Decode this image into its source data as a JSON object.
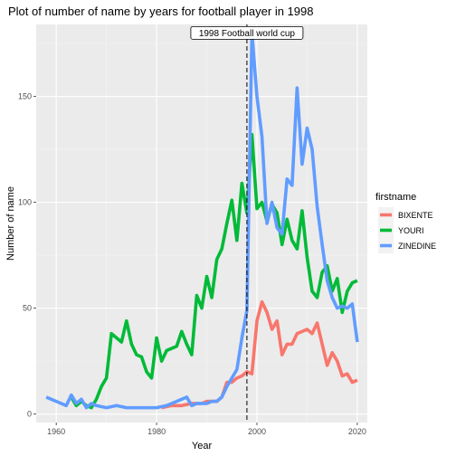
{
  "chart_data": {
    "type": "line",
    "title": "Plot of number of name by years for football player in 1998",
    "xlabel": "Year",
    "ylabel": "Number of name",
    "xlim": [
      1956,
      2022
    ],
    "ylim": [
      -4,
      184
    ],
    "x_ticks": [
      1960,
      1980,
      2000,
      2020
    ],
    "y_ticks": [
      0,
      50,
      100,
      150
    ],
    "x_tick_labels": [
      "1960",
      "1980",
      "2000",
      "2020"
    ],
    "y_tick_labels": [
      "0",
      "50",
      "100",
      "150"
    ],
    "grid": true,
    "legend": {
      "title": "firstname",
      "position": "right"
    },
    "vline": {
      "x": 1998,
      "style": "dashed"
    },
    "annotation": {
      "text": "1998 Football world cup",
      "x": 1998,
      "y": 180
    },
    "series": [
      {
        "name": "BIXENTE",
        "color": "#F8766D",
        "points": [
          [
            1981,
            3
          ],
          [
            1983,
            4
          ],
          [
            1985,
            4
          ],
          [
            1987,
            5
          ],
          [
            1989,
            5
          ],
          [
            1990,
            6
          ],
          [
            1991,
            6
          ],
          [
            1992,
            6
          ],
          [
            1993,
            8
          ],
          [
            1994,
            15
          ],
          [
            1995,
            15
          ],
          [
            1996,
            17
          ],
          [
            1997,
            18
          ],
          [
            1998,
            20
          ],
          [
            1999,
            19
          ],
          [
            2000,
            44
          ],
          [
            2001,
            53
          ],
          [
            2002,
            48
          ],
          [
            2003,
            40
          ],
          [
            2004,
            44
          ],
          [
            2005,
            28
          ],
          [
            2006,
            33
          ],
          [
            2007,
            33
          ],
          [
            2008,
            38
          ],
          [
            2009,
            39
          ],
          [
            2010,
            40
          ],
          [
            2011,
            38
          ],
          [
            2012,
            43
          ],
          [
            2013,
            33
          ],
          [
            2014,
            23
          ],
          [
            2015,
            29
          ],
          [
            2016,
            25
          ],
          [
            2017,
            18
          ],
          [
            2018,
            19
          ],
          [
            2019,
            15
          ],
          [
            2020,
            16
          ]
        ]
      },
      {
        "name": "YOURI",
        "color": "#00BA38",
        "points": [
          [
            1963,
            8
          ],
          [
            1964,
            4
          ],
          [
            1965,
            6
          ],
          [
            1966,
            4
          ],
          [
            1967,
            3
          ],
          [
            1968,
            7
          ],
          [
            1969,
            13
          ],
          [
            1970,
            17
          ],
          [
            1971,
            38
          ],
          [
            1972,
            36
          ],
          [
            1973,
            34
          ],
          [
            1974,
            44
          ],
          [
            1975,
            33
          ],
          [
            1976,
            28
          ],
          [
            1977,
            27
          ],
          [
            1978,
            20
          ],
          [
            1979,
            17
          ],
          [
            1980,
            36
          ],
          [
            1981,
            25
          ],
          [
            1982,
            30
          ],
          [
            1983,
            31
          ],
          [
            1984,
            32
          ],
          [
            1985,
            39
          ],
          [
            1986,
            33
          ],
          [
            1987,
            28
          ],
          [
            1988,
            56
          ],
          [
            1989,
            50
          ],
          [
            1990,
            65
          ],
          [
            1991,
            55
          ],
          [
            1992,
            73
          ],
          [
            1993,
            78
          ],
          [
            1994,
            90
          ],
          [
            1995,
            101
          ],
          [
            1996,
            82
          ],
          [
            1997,
            109
          ],
          [
            1998,
            95
          ],
          [
            1999,
            132
          ],
          [
            2000,
            97
          ],
          [
            2001,
            100
          ],
          [
            2002,
            91
          ],
          [
            2003,
            99
          ],
          [
            2004,
            95
          ],
          [
            2005,
            80
          ],
          [
            2006,
            92
          ],
          [
            2007,
            82
          ],
          [
            2008,
            78
          ],
          [
            2009,
            96
          ],
          [
            2010,
            74
          ],
          [
            2011,
            58
          ],
          [
            2012,
            55
          ],
          [
            2013,
            67
          ],
          [
            2014,
            70
          ],
          [
            2015,
            58
          ],
          [
            2016,
            64
          ],
          [
            2017,
            48
          ],
          [
            2018,
            58
          ],
          [
            2019,
            62
          ],
          [
            2020,
            63
          ]
        ]
      },
      {
        "name": "ZINEDINE",
        "color": "#619CFF",
        "points": [
          [
            1958,
            8
          ],
          [
            1960,
            6
          ],
          [
            1962,
            4
          ],
          [
            1963,
            9
          ],
          [
            1964,
            5
          ],
          [
            1965,
            7
          ],
          [
            1966,
            3
          ],
          [
            1967,
            5
          ],
          [
            1968,
            4
          ],
          [
            1970,
            3
          ],
          [
            1972,
            4
          ],
          [
            1974,
            3
          ],
          [
            1976,
            3
          ],
          [
            1980,
            3
          ],
          [
            1982,
            4
          ],
          [
            1984,
            6
          ],
          [
            1986,
            8
          ],
          [
            1987,
            4
          ],
          [
            1988,
            5
          ],
          [
            1990,
            5
          ],
          [
            1991,
            6
          ],
          [
            1992,
            6
          ],
          [
            1993,
            8
          ],
          [
            1994,
            13
          ],
          [
            1995,
            17
          ],
          [
            1996,
            21
          ],
          [
            1997,
            36
          ],
          [
            1998,
            49
          ],
          [
            1999,
            180
          ],
          [
            2000,
            150
          ],
          [
            2001,
            131
          ],
          [
            2002,
            90
          ],
          [
            2003,
            100
          ],
          [
            2004,
            88
          ],
          [
            2005,
            85
          ],
          [
            2006,
            111
          ],
          [
            2007,
            108
          ],
          [
            2008,
            154
          ],
          [
            2009,
            118
          ],
          [
            2010,
            135
          ],
          [
            2011,
            125
          ],
          [
            2012,
            98
          ],
          [
            2013,
            80
          ],
          [
            2014,
            63
          ],
          [
            2015,
            55
          ],
          [
            2016,
            50
          ],
          [
            2017,
            51
          ],
          [
            2018,
            50
          ],
          [
            2019,
            52
          ],
          [
            2020,
            34
          ]
        ]
      }
    ]
  }
}
